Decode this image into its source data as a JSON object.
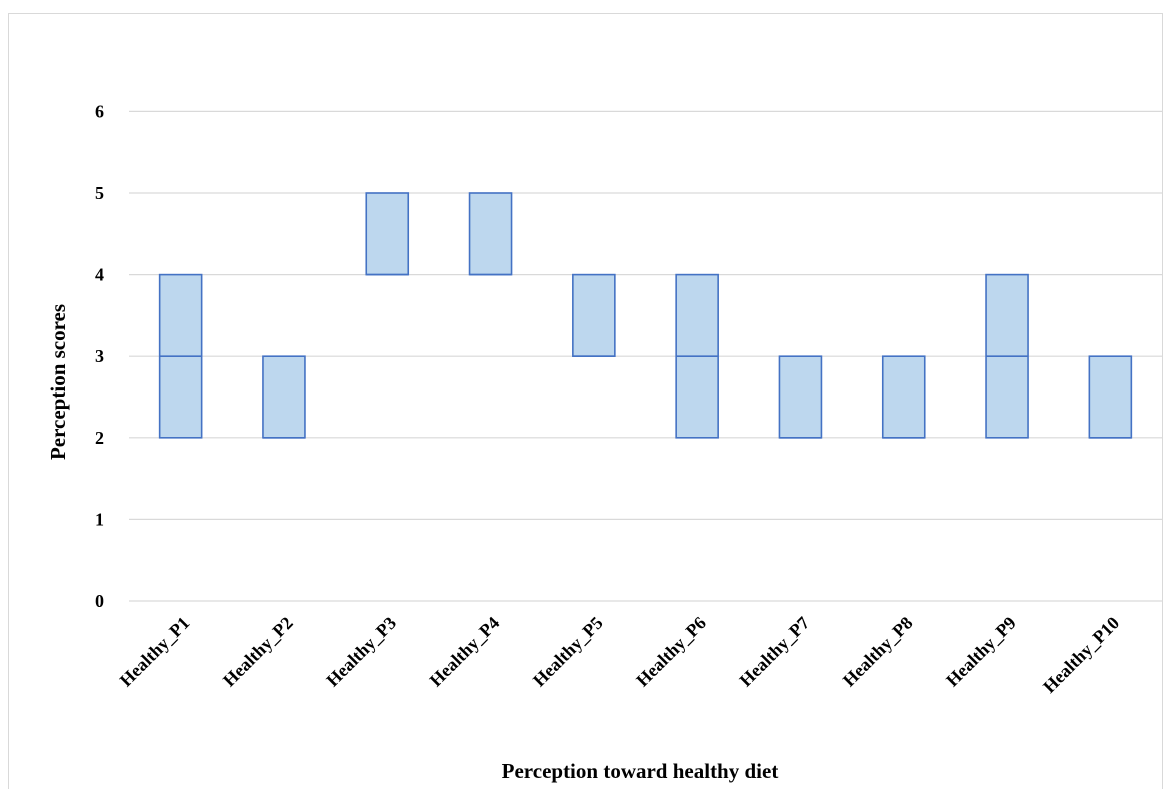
{
  "chart_data": {
    "type": "box",
    "title": "",
    "xlabel": "Perception toward healthy diet",
    "ylabel": "Perception scores",
    "ylim": [
      0,
      6
    ],
    "yticks": [
      0,
      1,
      2,
      3,
      4,
      5,
      6
    ],
    "grid": true,
    "categories": [
      "Healthy_P1",
      "Healthy_P2",
      "Healthy_P3",
      "Healthy_P4",
      "Healthy_P5",
      "Healthy_P6",
      "Healthy_P7",
      "Healthy_P8",
      "Healthy_P9",
      "Healthy_P10"
    ],
    "boxes": [
      {
        "q1": 2,
        "median": 3,
        "q3": 4
      },
      {
        "q1": 2,
        "median": 2,
        "q3": 3
      },
      {
        "q1": 4,
        "median": 4,
        "q3": 5
      },
      {
        "q1": 4,
        "median": 4,
        "q3": 5
      },
      {
        "q1": 3,
        "median": 3,
        "q3": 4
      },
      {
        "q1": 2,
        "median": 3,
        "q3": 4
      },
      {
        "q1": 2,
        "median": 2,
        "q3": 3
      },
      {
        "q1": 2,
        "median": 2,
        "q3": 3
      },
      {
        "q1": 2,
        "median": 3,
        "q3": 4
      },
      {
        "q1": 2,
        "median": 2,
        "q3": 3
      }
    ],
    "colors": {
      "box_fill": "#bdd7ee",
      "box_stroke": "#4472c4",
      "grid": "#d9d9d9"
    }
  }
}
